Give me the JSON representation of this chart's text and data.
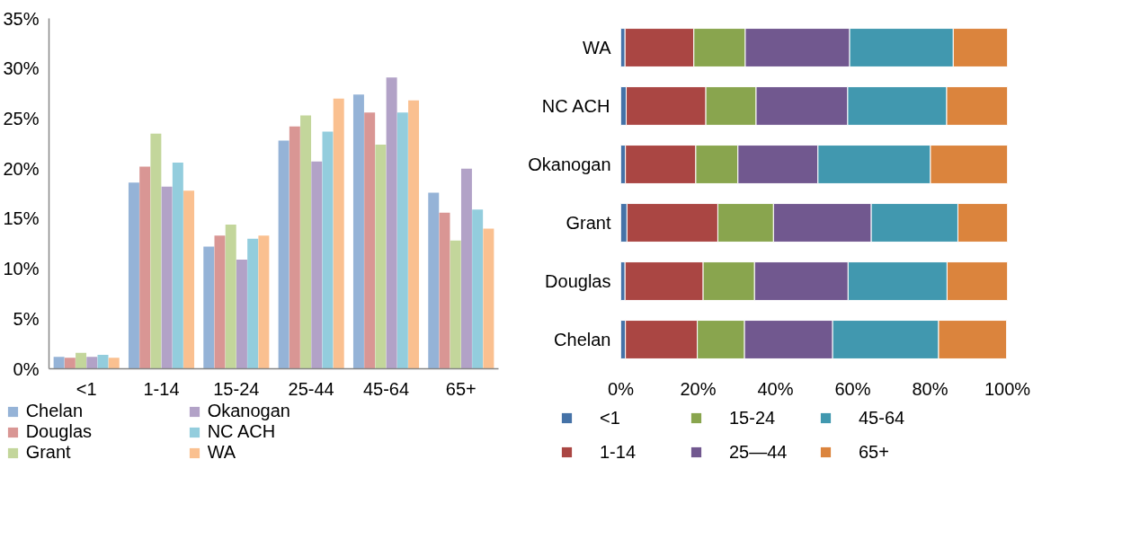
{
  "chart_data": [
    {
      "type": "bar",
      "categories": [
        "<1",
        "1-14",
        "15-24",
        "25-44",
        "45-64",
        "65+"
      ],
      "series": [
        {
          "name": "Chelan",
          "color": "#95b3d7",
          "values": [
            1.2,
            18.6,
            12.2,
            22.8,
            27.4,
            17.6
          ]
        },
        {
          "name": "Douglas",
          "color": "#d99694",
          "values": [
            1.1,
            20.2,
            13.3,
            24.2,
            25.6,
            15.6
          ]
        },
        {
          "name": "Grant",
          "color": "#c3d69b",
          "values": [
            1.6,
            23.5,
            14.4,
            25.3,
            22.4,
            12.8
          ]
        },
        {
          "name": "Okanogan",
          "color": "#b2a2c7",
          "values": [
            1.2,
            18.2,
            10.9,
            20.7,
            29.1,
            20.0
          ]
        },
        {
          "name": "NC ACH",
          "color": "#93cddd",
          "values": [
            1.4,
            20.6,
            13.0,
            23.7,
            25.6,
            15.9
          ]
        },
        {
          "name": "WA",
          "color": "#fac090",
          "values": [
            1.1,
            17.8,
            13.3,
            27.0,
            26.8,
            14.0
          ]
        }
      ],
      "ylim": [
        0,
        35
      ],
      "yticks": [
        {
          "value": 0,
          "label": "0%"
        },
        {
          "value": 5,
          "label": "5%"
        },
        {
          "value": 10,
          "label": "10%"
        },
        {
          "value": 15,
          "label": "15%"
        },
        {
          "value": 20,
          "label": "20%"
        },
        {
          "value": 25,
          "label": "25%"
        },
        {
          "value": 30,
          "label": "30%"
        },
        {
          "value": 35,
          "label": "35%"
        }
      ],
      "grid": false,
      "legend": "bottom"
    },
    {
      "type": "bar",
      "orientation": "horizontal",
      "stacked": true,
      "categories": [
        "WA",
        "NC ACH",
        "Okanogan",
        "Grant",
        "Douglas",
        "Chelan"
      ],
      "series": [
        {
          "name": "<1",
          "color": "#4572a7",
          "values": [
            1.1,
            1.4,
            1.2,
            1.6,
            1.1,
            1.2
          ]
        },
        {
          "name": "1-14",
          "color": "#aa4643",
          "values": [
            17.8,
            20.6,
            18.2,
            23.5,
            20.2,
            18.6
          ]
        },
        {
          "name": "15-24",
          "color": "#89a54e",
          "values": [
            13.3,
            13.0,
            10.9,
            14.4,
            13.3,
            12.2
          ]
        },
        {
          "name": "25—44",
          "color": "#71588f",
          "values": [
            27.0,
            23.7,
            20.7,
            25.3,
            24.2,
            22.8
          ]
        },
        {
          "name": "45-64",
          "color": "#4198af",
          "values": [
            26.8,
            25.6,
            29.1,
            22.4,
            25.6,
            27.4
          ]
        },
        {
          "name": "65+",
          "color": "#db843d",
          "values": [
            14.0,
            15.9,
            20.0,
            12.8,
            15.6,
            17.6
          ]
        }
      ],
      "xlim": [
        0,
        100
      ],
      "xticks": [
        {
          "value": 0,
          "label": "0%"
        },
        {
          "value": 20,
          "label": "20%"
        },
        {
          "value": 40,
          "label": "40%"
        },
        {
          "value": 60,
          "label": "60%"
        },
        {
          "value": 80,
          "label": "80%"
        },
        {
          "value": 100,
          "label": "100%"
        }
      ],
      "grid": false,
      "legend": "bottom"
    }
  ]
}
